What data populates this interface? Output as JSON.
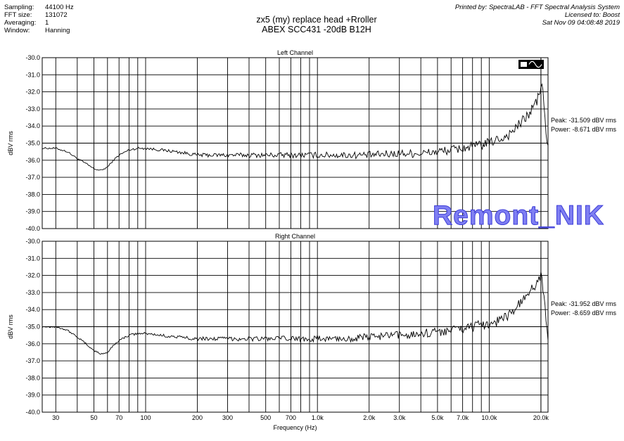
{
  "header": {
    "settings": [
      {
        "key": "Sampling:",
        "value": "44100 Hz"
      },
      {
        "key": "FFT size:",
        "value": "131072"
      },
      {
        "key": "Averaging:",
        "value": "1"
      },
      {
        "key": "Window:",
        "value": "Hanning"
      }
    ],
    "printed_by": "Printed by: SpectraLAB - FFT Spectral Analysis System",
    "licensed_to": "Licensed to: Boost",
    "timestamp": "Sat Nov 09 04:08:48 2019",
    "title_line1": "zx5 (my) replace head +Rroller",
    "title_line2": "ABEX SCC431 -20dB  B12H"
  },
  "watermark": "Remont_NIK",
  "chart_data": [
    {
      "type": "line",
      "title": "Left Channel",
      "xlabel": "",
      "ylabel": "dBV rms",
      "xscale": "log",
      "xlim": [
        25,
        22000
      ],
      "ylim": [
        -40,
        -30
      ],
      "grid": true,
      "yticks": [
        -30,
        -31,
        -32,
        -33,
        -34,
        -35,
        -36,
        -37,
        -38,
        -39,
        -40
      ],
      "ytick_labels": [
        "-30.0",
        "-31.0",
        "-32.0",
        "-33.0",
        "-34.0",
        "-35.0",
        "-36.0",
        "-37.0",
        "-38.0",
        "-39.0",
        "-40.0"
      ],
      "annotations": [
        "Peak: -31.509 dBV rms",
        "Power: -8.671 dBV rms"
      ],
      "x": [
        25,
        30,
        35,
        40,
        45,
        50,
        55,
        60,
        65,
        70,
        80,
        90,
        100,
        150,
        200,
        300,
        500,
        700,
        1000,
        1500,
        2000,
        3000,
        4000,
        5000,
        6000,
        7000,
        8000,
        9000,
        10000,
        11000,
        12000,
        13000,
        14000,
        15000,
        16000,
        17000,
        18000,
        19000,
        19500,
        20000,
        20500,
        21000,
        21500,
        22000
      ],
      "values": [
        -35.3,
        -35.3,
        -35.5,
        -35.9,
        -36.2,
        -36.5,
        -36.6,
        -36.4,
        -36.0,
        -35.7,
        -35.4,
        -35.3,
        -35.3,
        -35.5,
        -35.7,
        -35.7,
        -35.7,
        -35.7,
        -35.7,
        -35.7,
        -35.7,
        -35.6,
        -35.6,
        -35.5,
        -35.4,
        -35.3,
        -35.2,
        -35.1,
        -35.0,
        -34.8,
        -34.7,
        -34.5,
        -34.2,
        -33.9,
        -33.6,
        -33.3,
        -32.9,
        -32.5,
        -32.2,
        -31.5,
        -32.0,
        -33.2,
        -34.5,
        -35.4
      ]
    },
    {
      "type": "line",
      "title": "Right Channel",
      "xlabel": "Frequency (Hz)",
      "ylabel": "dBV rms",
      "xscale": "log",
      "xlim": [
        25,
        22000
      ],
      "ylim": [
        -40,
        -30
      ],
      "grid": true,
      "yticks": [
        -30,
        -31,
        -32,
        -33,
        -34,
        -35,
        -36,
        -37,
        -38,
        -39,
        -40
      ],
      "ytick_labels": [
        "-30.0",
        "-31.0",
        "-32.0",
        "-33.0",
        "-34.0",
        "-35.0",
        "-36.0",
        "-37.0",
        "-38.0",
        "-39.0",
        "-40.0"
      ],
      "xticks": [
        30,
        50,
        70,
        100,
        200,
        300,
        500,
        700,
        1000,
        2000,
        3000,
        5000,
        7000,
        10000,
        20000
      ],
      "xtick_labels": [
        "30",
        "50",
        "70",
        "100",
        "200",
        "300",
        "500",
        "700",
        "1.0k",
        "2.0k",
        "3.0k",
        "5.0k",
        "7.0k",
        "10.0k",
        "20.0k"
      ],
      "annotations": [
        "Peak: -31.952 dBV rms",
        "Power: -8.659 dBV rms"
      ],
      "x": [
        25,
        30,
        35,
        40,
        45,
        50,
        55,
        60,
        65,
        70,
        80,
        90,
        100,
        150,
        200,
        300,
        500,
        700,
        1000,
        1500,
        2000,
        3000,
        4000,
        5000,
        6000,
        7000,
        8000,
        9000,
        10000,
        11000,
        12000,
        13000,
        14000,
        15000,
        16000,
        17000,
        18000,
        19000,
        19500,
        20000,
        20500,
        21000,
        21500,
        22000
      ],
      "values": [
        -35.0,
        -35.0,
        -35.2,
        -35.6,
        -36.0,
        -36.4,
        -36.6,
        -36.5,
        -36.1,
        -35.8,
        -35.5,
        -35.4,
        -35.4,
        -35.6,
        -35.7,
        -35.7,
        -35.7,
        -35.7,
        -35.7,
        -35.7,
        -35.6,
        -35.5,
        -35.4,
        -35.3,
        -35.2,
        -35.1,
        -35.0,
        -34.9,
        -34.8,
        -34.7,
        -34.5,
        -34.3,
        -34.0,
        -33.7,
        -33.4,
        -33.1,
        -32.7,
        -32.4,
        -32.2,
        -32.0,
        -32.6,
        -33.6,
        -34.8,
        -35.5
      ]
    }
  ]
}
